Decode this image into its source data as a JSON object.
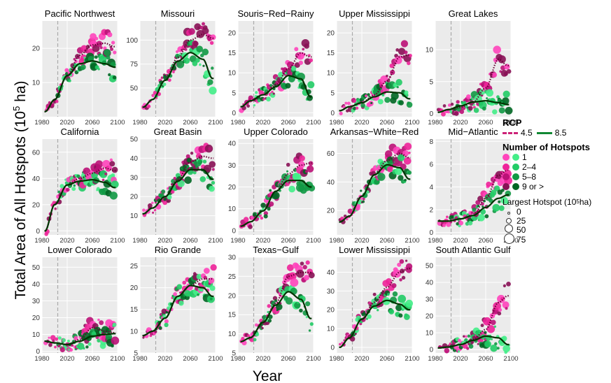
{
  "axis": {
    "ylabel_main": "Total Area of All Hotspots (10",
    "ylabel_sup": "5",
    "ylabel_tail": " ha)",
    "xlabel": "Year"
  },
  "legend": {
    "rcp_title": "RCP",
    "rcp_items": [
      {
        "label": "4.5",
        "color": "#cc2277"
      },
      {
        "label": "8.5",
        "color": "#118833"
      }
    ],
    "hotspots_title": "Number of Hotspots",
    "hotspot_rows": [
      {
        "label": "1",
        "pink": "#ff44bb",
        "green": "#44ee88"
      },
      {
        "label": "2–4",
        "pink": "#ee2299",
        "green": "#22cc66"
      },
      {
        "label": "5–8",
        "pink": "#bb1177",
        "green": "#119944"
      },
      {
        "label": "9 or >",
        "pink": "#881155",
        "green": "#006622"
      }
    ],
    "largest_title_main": "Largest Hotspot (10",
    "largest_title_sup": "5",
    "largest_title_tail": " ha)",
    "size_items": [
      "0",
      "25",
      "50",
      "75"
    ]
  },
  "colors": {
    "panel_bg": "#ebebeb",
    "grid": "#ffffff",
    "rcp45_line": "#660033",
    "rcp85_line": "#003300",
    "vline": "#aaaaaa"
  },
  "chart_data": [
    {
      "type": "scatter",
      "title": "Pacific Northwest",
      "xlim": [
        1980,
        2100
      ],
      "ylim": [
        0,
        28
      ],
      "xticks": [
        1980,
        2020,
        2060,
        2100
      ],
      "yticks": [
        10,
        20
      ],
      "series": [
        {
          "name": "4.5",
          "x": [
            1985,
            2000,
            2020,
            2040,
            2060,
            2080,
            2095
          ],
          "y": [
            1.5,
            5,
            12,
            18,
            21,
            21.5,
            20.5
          ]
        },
        {
          "name": "8.5",
          "x": [
            1985,
            2000,
            2020,
            2040,
            2060,
            2080,
            2095
          ],
          "y": [
            1.5,
            5,
            12,
            15.5,
            16.3,
            15.5,
            14.5
          ]
        }
      ]
    },
    {
      "type": "scatter",
      "title": "Missouri",
      "xlim": [
        1980,
        2100
      ],
      "ylim": [
        20,
        120
      ],
      "xticks": [
        1980,
        2020,
        2060,
        2100
      ],
      "yticks": [
        50,
        75,
        100
      ],
      "series": [
        {
          "name": "4.5",
          "x": [
            1985,
            2000,
            2020,
            2040,
            2060,
            2080,
            2095
          ],
          "y": [
            30,
            38,
            58,
            82,
            100,
            106,
            102
          ]
        },
        {
          "name": "8.5",
          "x": [
            1985,
            2000,
            2020,
            2040,
            2060,
            2080,
            2095
          ],
          "y": [
            30,
            38,
            58,
            78,
            87,
            80,
            60
          ]
        }
      ]
    },
    {
      "type": "scatter",
      "title": "Souris−Red−Rainy",
      "xlim": [
        1980,
        2100
      ],
      "ylim": [
        -1,
        23
      ],
      "xticks": [
        1980,
        2020,
        2060,
        2100
      ],
      "yticks": [
        0,
        5,
        10,
        15,
        20
      ],
      "series": [
        {
          "name": "4.5",
          "x": [
            1985,
            2000,
            2020,
            2040,
            2060,
            2080,
            2095
          ],
          "y": [
            1.5,
            3,
            4.5,
            7,
            11,
            15,
            14
          ]
        },
        {
          "name": "8.5",
          "x": [
            1985,
            2000,
            2020,
            2040,
            2060,
            2080,
            2095
          ],
          "y": [
            1.5,
            3,
            4.5,
            6.5,
            9.3,
            8.5,
            4
          ]
        }
      ]
    },
    {
      "type": "scatter",
      "title": "Upper Mississippi",
      "xlim": [
        1980,
        2100
      ],
      "ylim": [
        -1,
        23
      ],
      "xticks": [
        1980,
        2020,
        2060,
        2100
      ],
      "yticks": [
        0,
        5,
        10,
        15,
        20
      ],
      "series": [
        {
          "name": "4.5",
          "x": [
            1985,
            2000,
            2020,
            2040,
            2060,
            2080,
            2095
          ],
          "y": [
            0.5,
            1.5,
            2.5,
            4.5,
            8,
            14,
            14.5
          ]
        },
        {
          "name": "8.5",
          "x": [
            1985,
            2000,
            2020,
            2040,
            2060,
            2080,
            2095
          ],
          "y": [
            0.5,
            1.5,
            2.5,
            4,
            5.2,
            5,
            3.5
          ]
        }
      ]
    },
    {
      "type": "scatter",
      "title": "Great Lakes",
      "xlim": [
        1980,
        2100
      ],
      "ylim": [
        -0.5,
        14.5
      ],
      "xticks": [
        1980,
        2020,
        2060,
        2100
      ],
      "yticks": [
        0,
        5,
        10
      ],
      "series": [
        {
          "name": "4.5",
          "x": [
            1985,
            2000,
            2020,
            2040,
            2060,
            2080,
            2095
          ],
          "y": [
            0.2,
            0.6,
            1,
            1.8,
            4,
            8.5,
            7.5
          ]
        },
        {
          "name": "8.5",
          "x": [
            1985,
            2000,
            2020,
            2040,
            2060,
            2080,
            2095
          ],
          "y": [
            0.2,
            0.6,
            1.2,
            1.8,
            2,
            1.7,
            1.4
          ]
        }
      ]
    },
    {
      "type": "scatter",
      "title": "California",
      "xlim": [
        1980,
        2100
      ],
      "ylim": [
        -3,
        70
      ],
      "xticks": [
        1980,
        2020,
        2060,
        2100
      ],
      "yticks": [
        0,
        20,
        40,
        60
      ],
      "series": [
        {
          "name": "4.5",
          "x": [
            1985,
            2000,
            2020,
            2040,
            2060,
            2080,
            2095
          ],
          "y": [
            0,
            20,
            35,
            40,
            44,
            48,
            46
          ]
        },
        {
          "name": "8.5",
          "x": [
            1985,
            2000,
            2020,
            2040,
            2060,
            2080,
            2095
          ],
          "y": [
            0,
            20,
            35,
            38,
            39,
            37,
            33
          ]
        }
      ]
    },
    {
      "type": "scatter",
      "title": "Great Basin",
      "xlim": [
        1980,
        2100
      ],
      "ylim": [
        0,
        50
      ],
      "xticks": [
        1980,
        2020,
        2060,
        2100
      ],
      "yticks": [
        10,
        20,
        30,
        40,
        50
      ],
      "series": [
        {
          "name": "4.5",
          "x": [
            1985,
            2000,
            2020,
            2040,
            2060,
            2080,
            2095
          ],
          "y": [
            11,
            14,
            20,
            29,
            38,
            41,
            40
          ]
        },
        {
          "name": "8.5",
          "x": [
            1985,
            2000,
            2020,
            2040,
            2060,
            2080,
            2095
          ],
          "y": [
            11,
            14,
            20,
            28,
            34,
            34,
            29
          ]
        }
      ]
    },
    {
      "type": "scatter",
      "title": "Upper Colorado",
      "xlim": [
        1980,
        2100
      ],
      "ylim": [
        -2,
        42
      ],
      "xticks": [
        1980,
        2020,
        2060,
        2100
      ],
      "yticks": [
        0,
        10,
        20,
        30,
        40
      ],
      "series": [
        {
          "name": "4.5",
          "x": [
            1985,
            2000,
            2020,
            2040,
            2060,
            2080,
            2095
          ],
          "y": [
            2,
            4,
            9,
            18,
            26,
            30,
            31
          ]
        },
        {
          "name": "8.5",
          "x": [
            1985,
            2000,
            2020,
            2040,
            2060,
            2080,
            2095
          ],
          "y": [
            2,
            4,
            9,
            18,
            23,
            23,
            20
          ]
        }
      ]
    },
    {
      "type": "scatter",
      "title": "Arkansas−White−Red",
      "xlim": [
        1980,
        2100
      ],
      "ylim": [
        3,
        70
      ],
      "xticks": [
        1980,
        2020,
        2060,
        2100
      ],
      "yticks": [
        20,
        40,
        60
      ],
      "series": [
        {
          "name": "4.5",
          "x": [
            1985,
            2000,
            2020,
            2040,
            2060,
            2080,
            2095
          ],
          "y": [
            12,
            16,
            30,
            45,
            55,
            60,
            57
          ]
        },
        {
          "name": "8.5",
          "x": [
            1985,
            2000,
            2020,
            2040,
            2060,
            2080,
            2095
          ],
          "y": [
            12,
            16,
            30,
            45,
            52,
            50,
            42
          ]
        }
      ]
    },
    {
      "type": "scatter",
      "title": "Mid−Atlantic",
      "xlim": [
        1980,
        2100
      ],
      "ylim": [
        -0.2,
        8.2
      ],
      "xticks": [
        1980,
        2020,
        2060,
        2100
      ],
      "yticks": [
        0,
        2,
        4,
        6,
        8
      ],
      "series": [
        {
          "name": "4.5",
          "x": [
            1985,
            2000,
            2020,
            2040,
            2060,
            2080,
            2095
          ],
          "y": [
            1,
            1,
            1.2,
            1.5,
            3,
            5,
            5.5
          ]
        },
        {
          "name": "8.5",
          "x": [
            1985,
            2000,
            2020,
            2040,
            2060,
            2080,
            2095
          ],
          "y": [
            1,
            1,
            1.2,
            1.5,
            2.2,
            3,
            3.3
          ]
        }
      ]
    },
    {
      "type": "scatter",
      "title": "Lower Colorado",
      "xlim": [
        1980,
        2100
      ],
      "ylim": [
        -1,
        56
      ],
      "xticks": [
        1980,
        2020,
        2060,
        2100
      ],
      "yticks": [
        0,
        10,
        20,
        30,
        40,
        50
      ],
      "series": [
        {
          "name": "4.5",
          "x": [
            1985,
            2000,
            2020,
            2040,
            2060,
            2080,
            2095
          ],
          "y": [
            6,
            5,
            4,
            7,
            14,
            12,
            11
          ]
        },
        {
          "name": "8.5",
          "x": [
            1985,
            2000,
            2020,
            2040,
            2060,
            2080,
            2095
          ],
          "y": [
            6,
            5,
            4,
            6,
            9,
            10,
            10.5
          ]
        }
      ]
    },
    {
      "type": "scatter",
      "title": "Rio Grande",
      "xlim": [
        1980,
        2100
      ],
      "ylim": [
        5,
        27
      ],
      "xticks": [
        1980,
        2020,
        2060,
        2100
      ],
      "yticks": [
        5,
        10,
        15,
        20,
        25
      ],
      "series": [
        {
          "name": "4.5",
          "x": [
            1985,
            2000,
            2020,
            2040,
            2060,
            2080,
            2095
          ],
          "y": [
            9,
            10,
            13,
            18,
            20.5,
            22,
            22
          ]
        },
        {
          "name": "8.5",
          "x": [
            1985,
            2000,
            2020,
            2040,
            2060,
            2080,
            2095
          ],
          "y": [
            9,
            10,
            13,
            18,
            20.5,
            20,
            18
          ]
        }
      ]
    },
    {
      "type": "scatter",
      "title": "Texas−Gulf",
      "xlim": [
        1980,
        2100
      ],
      "ylim": [
        5,
        30
      ],
      "xticks": [
        1980,
        2020,
        2060,
        2100
      ],
      "yticks": [
        5,
        10,
        15,
        20,
        25,
        30
      ],
      "series": [
        {
          "name": "4.5",
          "x": [
            1985,
            2000,
            2020,
            2040,
            2060,
            2080,
            2095
          ],
          "y": [
            8,
            9,
            13,
            18,
            25,
            26,
            26
          ]
        },
        {
          "name": "8.5",
          "x": [
            1985,
            2000,
            2020,
            2040,
            2060,
            2080,
            2095
          ],
          "y": [
            8,
            9,
            13,
            17.5,
            21,
            19,
            14
          ]
        }
      ]
    },
    {
      "type": "scatter",
      "title": "Lower Mississippi",
      "xlim": [
        1980,
        2100
      ],
      "ylim": [
        -3,
        48
      ],
      "xticks": [
        1980,
        2020,
        2060,
        2100
      ],
      "yticks": [
        0,
        10,
        20,
        30,
        40
      ],
      "series": [
        {
          "name": "4.5",
          "x": [
            1985,
            2000,
            2020,
            2040,
            2060,
            2080,
            2095
          ],
          "y": [
            0,
            5,
            15,
            24,
            32,
            40,
            42
          ]
        },
        {
          "name": "8.5",
          "x": [
            1985,
            2000,
            2020,
            2040,
            2060,
            2080,
            2095
          ],
          "y": [
            0,
            5,
            15,
            22,
            25,
            23,
            20
          ]
        }
      ]
    },
    {
      "type": "scatter",
      "title": "South Atlantic Gulf",
      "xlim": [
        1980,
        2100
      ],
      "ylim": [
        -2,
        55
      ],
      "xticks": [
        1980,
        2020,
        2060,
        2100
      ],
      "yticks": [
        0,
        10,
        20,
        30,
        40,
        50
      ],
      "series": [
        {
          "name": "4.5",
          "x": [
            1985,
            2000,
            2020,
            2040,
            2060,
            2080,
            2095
          ],
          "y": [
            1,
            1.5,
            3,
            6,
            12,
            28,
            32
          ]
        },
        {
          "name": "8.5",
          "x": [
            1985,
            2000,
            2020,
            2040,
            2060,
            2080,
            2095
          ],
          "y": [
            1,
            1.5,
            3,
            5.5,
            8,
            7,
            3
          ]
        }
      ]
    }
  ]
}
